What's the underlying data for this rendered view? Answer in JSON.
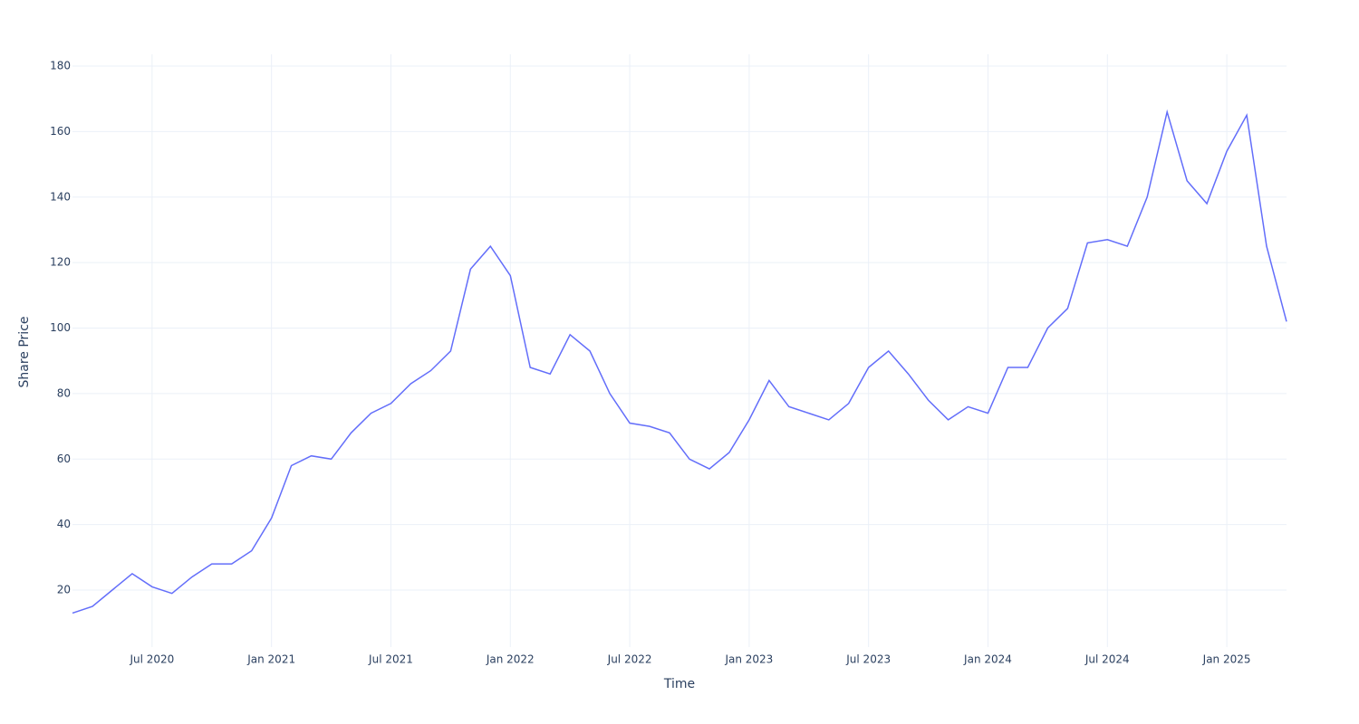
{
  "chart_data": {
    "type": "line",
    "x_title": "Time",
    "y_title": "Share Price",
    "x": [
      "2020-03",
      "2020-04",
      "2020-05",
      "2020-06",
      "2020-07",
      "2020-08",
      "2020-09",
      "2020-10",
      "2020-11",
      "2020-12",
      "2021-01",
      "2021-02",
      "2021-03",
      "2021-04",
      "2021-05",
      "2021-06",
      "2021-07",
      "2021-08",
      "2021-09",
      "2021-10",
      "2021-11",
      "2021-12",
      "2022-01",
      "2022-02",
      "2022-03",
      "2022-04",
      "2022-05",
      "2022-06",
      "2022-07",
      "2022-08",
      "2022-09",
      "2022-10",
      "2022-11",
      "2022-12",
      "2023-01",
      "2023-02",
      "2023-03",
      "2023-04",
      "2023-05",
      "2023-06",
      "2023-07",
      "2023-08",
      "2023-09",
      "2023-10",
      "2023-11",
      "2023-12",
      "2024-01",
      "2024-02",
      "2024-03",
      "2024-04",
      "2024-05",
      "2024-06",
      "2024-07",
      "2024-08",
      "2024-09",
      "2024-10",
      "2024-11",
      "2024-12",
      "2025-01",
      "2025-02",
      "2025-03",
      "2025-04"
    ],
    "series": [
      {
        "color": "#636efa",
        "values": [
          13,
          15,
          20,
          25,
          21,
          19,
          24,
          28,
          28,
          32,
          42,
          58,
          61,
          60,
          68,
          74,
          77,
          83,
          87,
          93,
          118,
          125,
          116,
          88,
          86,
          98,
          93,
          80,
          71,
          70,
          68,
          60,
          57,
          62,
          72,
          84,
          76,
          74,
          72,
          77,
          88,
          93,
          86,
          78,
          72,
          76,
          74,
          88,
          88,
          100,
          106,
          126,
          127,
          125,
          140,
          166,
          145,
          138,
          154,
          165,
          125,
          102
        ]
      }
    ],
    "xlim": [
      "2020-03",
      "2025-04"
    ],
    "xticks": [
      {
        "value": "2020-07",
        "label": "Jul 2020"
      },
      {
        "value": "2021-01",
        "label": "Jan 2021"
      },
      {
        "value": "2021-07",
        "label": "Jul 2021"
      },
      {
        "value": "2022-01",
        "label": "Jan 2022"
      },
      {
        "value": "2022-07",
        "label": "Jul 2022"
      },
      {
        "value": "2023-01",
        "label": "Jan 2023"
      },
      {
        "value": "2023-07",
        "label": "Jul 2023"
      },
      {
        "value": "2024-01",
        "label": "Jan 2024"
      },
      {
        "value": "2024-07",
        "label": "Jul 2024"
      },
      {
        "value": "2025-01",
        "label": "Jan 2025"
      }
    ],
    "ylim": [
      2.6,
      183.6
    ],
    "yticks": [
      20,
      40,
      60,
      80,
      100,
      120,
      140,
      160,
      180
    ],
    "grid": true
  }
}
